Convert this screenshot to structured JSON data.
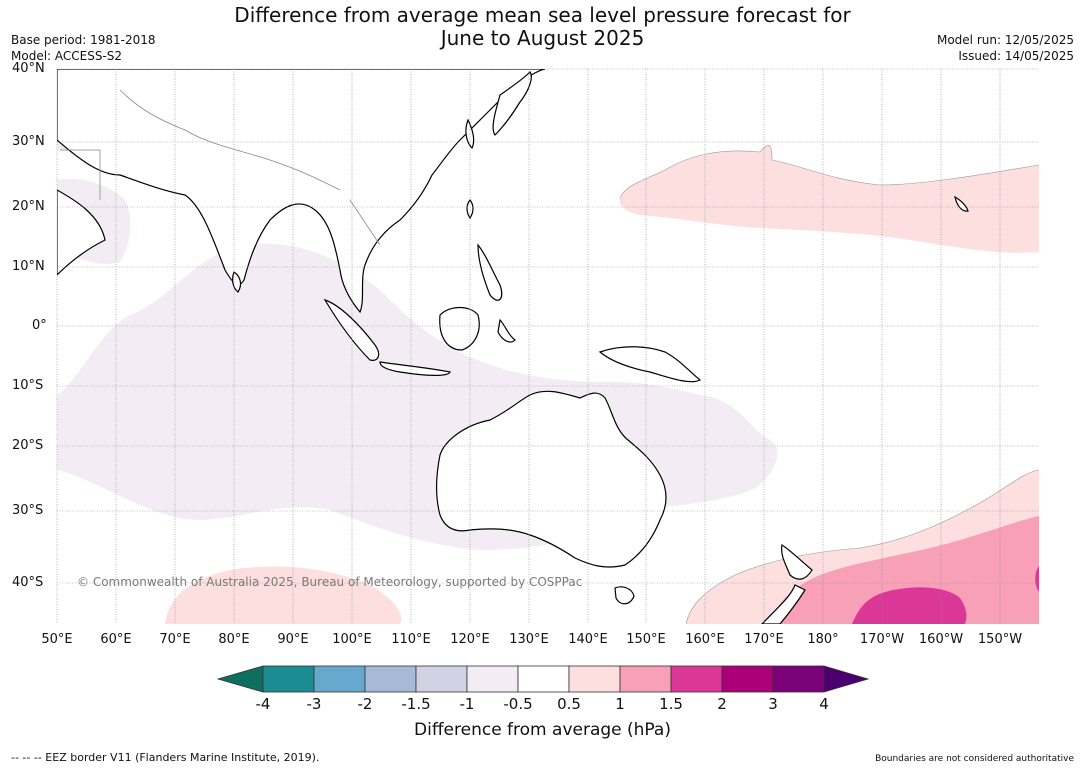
{
  "title_line1": "Difference from average mean sea level pressure forecast for",
  "title_line2": "June to August 2025",
  "base_period": "Base period: 1981-2018",
  "model": "Model: ACCESS-S2",
  "model_run": "Model run: 12/05/2025",
  "issued": "Issued: 14/05/2025",
  "copyright": "© Commonwealth of Australia 2025, Bureau of Meteorology, supported by COSPPac",
  "lat_labels": [
    "40°N",
    "30°N",
    "20°N",
    "10°N",
    "0°",
    "10°S",
    "20°S",
    "30°S",
    "40°S"
  ],
  "lon_labels": [
    "50°E",
    "60°E",
    "70°E",
    "80°E",
    "90°E",
    "100°E",
    "110°E",
    "120°E",
    "130°E",
    "140°E",
    "150°E",
    "160°E",
    "170°E",
    "180°",
    "170°W",
    "160°W",
    "150°W"
  ],
  "colorbar": {
    "ticks": [
      "-4",
      "-3",
      "-2",
      "-1.5",
      "-1",
      "-0.5",
      "0.5",
      "1",
      "1.5",
      "2",
      "3",
      "4"
    ],
    "colors": [
      "#1c8c93",
      "#67a8cf",
      "#a6b9d6",
      "#d2d2e4",
      "#f3ecf5",
      "#ffffff",
      "#fddfdf",
      "#f8a0b8",
      "#db3796",
      "#ac0078",
      "#7a0177"
    ],
    "under_color": "#0d6f60",
    "over_color": "#4a006e",
    "title": "Difference from average (hPa)"
  },
  "footer_left": "--  --  -- EEZ border V11 (Flanders Marine Institute, 2019).",
  "footer_right": "Boundaries are not considered authoritative"
}
